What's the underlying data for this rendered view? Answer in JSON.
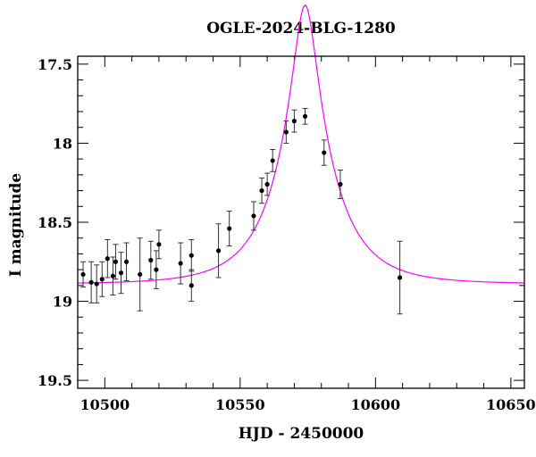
{
  "chart_data": {
    "type": "scatter",
    "title": "OGLE-2024-BLG-1280",
    "xlabel": "HJD - 2450000",
    "ylabel": "I magnitude",
    "xlim": [
      10490,
      10655
    ],
    "ylim": [
      19.55,
      17.45
    ],
    "y_inverted": true,
    "x_ticks": [
      10500,
      10550,
      10600,
      10650
    ],
    "y_ticks": [
      17.5,
      18,
      18.5,
      19,
      19.5
    ],
    "x_tick_labels": [
      "10500",
      "10550",
      "10600",
      "10650"
    ],
    "y_tick_labels": [
      "17.5",
      "18",
      "18.5",
      "19",
      "19.5"
    ],
    "grid": false,
    "series": [
      {
        "kind": "points_with_errorbars",
        "color": "#000000",
        "points": [
          {
            "x": 10492,
            "y": 18.83,
            "err": 0.08
          },
          {
            "x": 10495,
            "y": 18.88,
            "err": 0.13
          },
          {
            "x": 10497,
            "y": 18.89,
            "err": 0.12
          },
          {
            "x": 10499,
            "y": 18.86,
            "err": 0.11
          },
          {
            "x": 10501,
            "y": 18.73,
            "err": 0.12
          },
          {
            "x": 10503,
            "y": 18.84,
            "err": 0.12
          },
          {
            "x": 10504,
            "y": 18.75,
            "err": 0.11
          },
          {
            "x": 10506,
            "y": 18.82,
            "err": 0.13
          },
          {
            "x": 10508,
            "y": 18.75,
            "err": 0.12
          },
          {
            "x": 10513,
            "y": 18.83,
            "err": 0.23
          },
          {
            "x": 10517,
            "y": 18.74,
            "err": 0.12
          },
          {
            "x": 10519,
            "y": 18.8,
            "err": 0.12
          },
          {
            "x": 10520,
            "y": 18.64,
            "err": 0.09
          },
          {
            "x": 10528,
            "y": 18.76,
            "err": 0.13
          },
          {
            "x": 10532,
            "y": 18.71,
            "err": 0.1
          },
          {
            "x": 10532,
            "y": 18.9,
            "err": 0.1
          },
          {
            "x": 10542,
            "y": 18.68,
            "err": 0.17
          },
          {
            "x": 10546,
            "y": 18.54,
            "err": 0.11
          },
          {
            "x": 10555,
            "y": 18.46,
            "err": 0.09
          },
          {
            "x": 10558,
            "y": 18.3,
            "err": 0.08
          },
          {
            "x": 10560,
            "y": 18.26,
            "err": 0.07
          },
          {
            "x": 10562,
            "y": 18.11,
            "err": 0.07
          },
          {
            "x": 10567,
            "y": 17.93,
            "err": 0.07
          },
          {
            "x": 10570,
            "y": 17.86,
            "err": 0.07
          },
          {
            "x": 10574,
            "y": 17.83,
            "err": 0.05
          },
          {
            "x": 10581,
            "y": 18.06,
            "err": 0.08
          },
          {
            "x": 10587,
            "y": 18.26,
            "err": 0.09
          },
          {
            "x": 10609,
            "y": 18.85,
            "err": 0.23
          }
        ]
      },
      {
        "kind": "model_curve",
        "color": "#ff00ff",
        "model": {
          "t0": 10574,
          "u0": 0.2,
          "tE": 20,
          "baseline": 18.89
        }
      }
    ]
  }
}
